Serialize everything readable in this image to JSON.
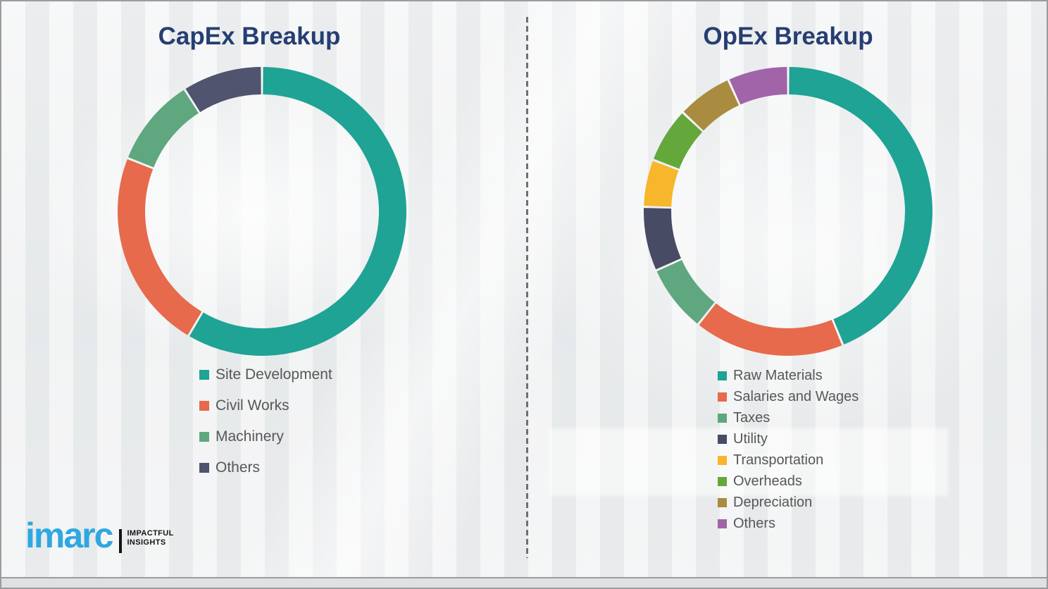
{
  "theme": {
    "background_color": "#eef0f1",
    "border_color": "#9a9c9e",
    "title_color": "#263e72",
    "legend_text_color": "#575757",
    "divider_color": "#6f6f6f"
  },
  "logo": {
    "brand": "imarc",
    "tagline_line1": "IMPACTFUL",
    "tagline_line2": "INSIGHTS",
    "brand_color": "#2fa7e1"
  },
  "chart_data": [
    {
      "type": "pie",
      "subtype": "donut",
      "title": "CapEx Breakup",
      "start_angle_deg": 0,
      "direction": "clockwise",
      "legend_position": "below-left",
      "data_labels_shown": false,
      "segments": [
        {
          "label": "Site Development",
          "value_pct": 58.5,
          "color": "#1ea395"
        },
        {
          "label": "Civil Works",
          "value_pct": 22.5,
          "color": "#e66a4b"
        },
        {
          "label": "Machinery",
          "value_pct": 10.0,
          "color": "#5fa77e"
        },
        {
          "label": "Others",
          "value_pct": 9.0,
          "color": "#50546e"
        }
      ]
    },
    {
      "type": "pie",
      "subtype": "donut",
      "title": "OpEx Breakup",
      "start_angle_deg": 0,
      "direction": "clockwise",
      "legend_position": "below-left",
      "data_labels_shown": false,
      "segments": [
        {
          "label": "Raw Materials",
          "value_pct": 43.8,
          "color": "#1ea395"
        },
        {
          "label": "Salaries and Wages",
          "value_pct": 16.9,
          "color": "#e66a4b"
        },
        {
          "label": "Taxes",
          "value_pct": 7.6,
          "color": "#5fa77e"
        },
        {
          "label": "Utility",
          "value_pct": 7.2,
          "color": "#474b63"
        },
        {
          "label": "Transportation",
          "value_pct": 5.3,
          "color": "#f7b62b"
        },
        {
          "label": "Overheads",
          "value_pct": 6.2,
          "color": "#64a83c"
        },
        {
          "label": "Depreciation",
          "value_pct": 6.2,
          "color": "#a98c3f"
        },
        {
          "label": "Others",
          "value_pct": 6.8,
          "color": "#a164a8"
        }
      ]
    }
  ]
}
